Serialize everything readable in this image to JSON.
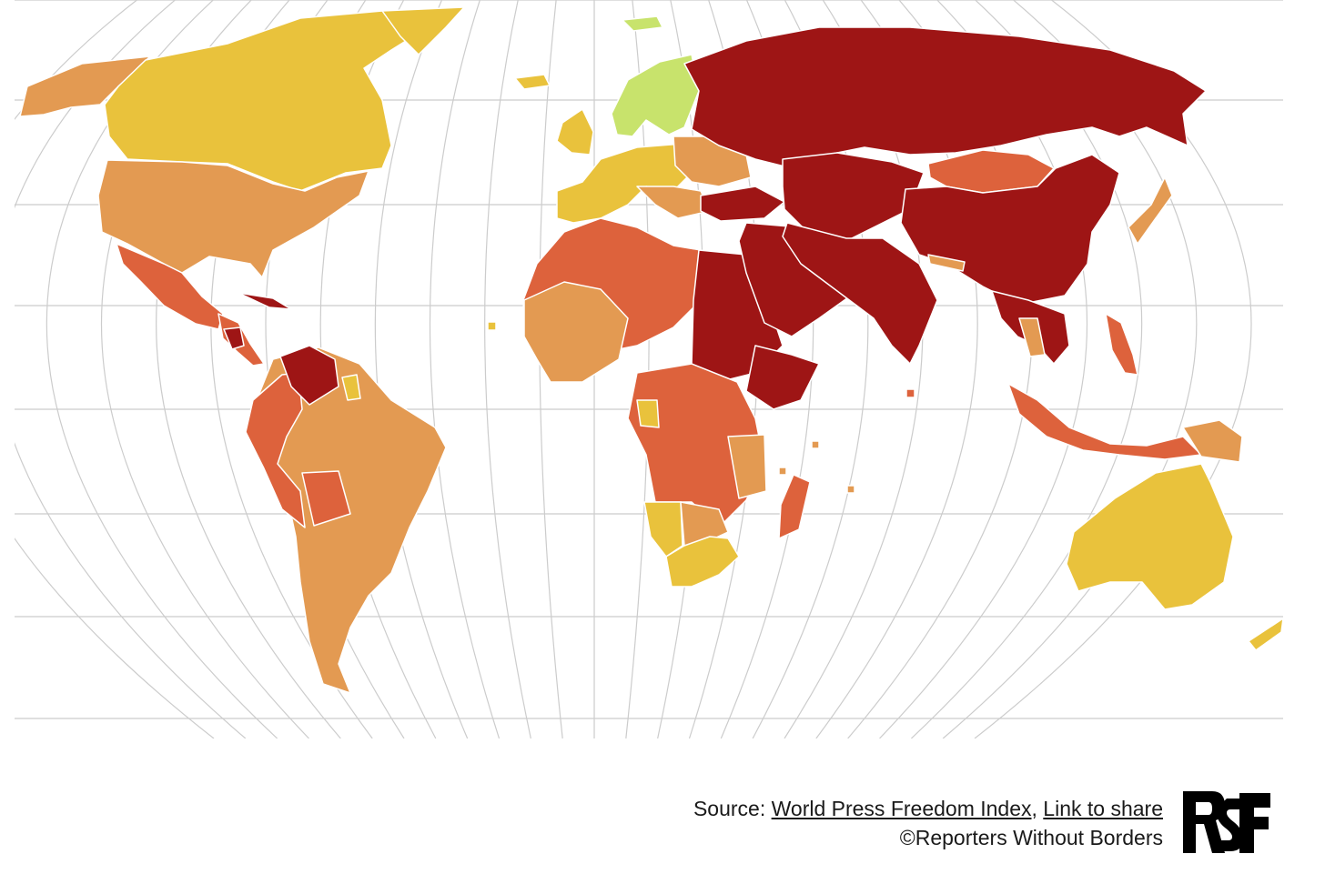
{
  "colors": {
    "good": "#c8e36c",
    "satisfactory": "#e9c23c",
    "problematic": "#e39a52",
    "difficult": "#dd623c",
    "very_serious": "#9e1515",
    "grid": "#cccccc",
    "border": "#ffffff"
  },
  "footer": {
    "source_prefix": "Source: ",
    "source_link": "World Press Freedom Index",
    "separator": ", ",
    "share_link": "Link to share",
    "copyright": "©Reporters Without Borders"
  },
  "logo": {
    "text": "RSF",
    "name": "rsf-logo"
  }
}
